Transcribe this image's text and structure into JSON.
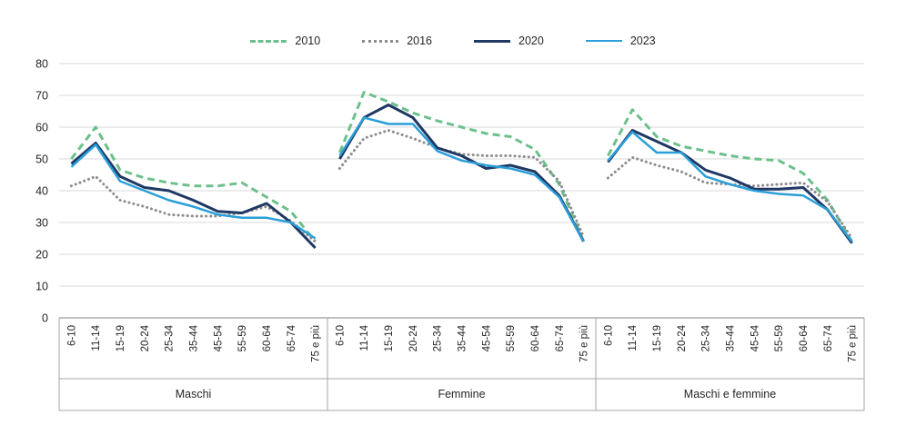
{
  "chart_data": {
    "type": "line",
    "title": "",
    "ylim": [
      0,
      80
    ],
    "yticks": [
      0,
      10,
      20,
      30,
      40,
      50,
      60,
      70,
      80
    ],
    "grid": true,
    "legend_position": "top",
    "categories": [
      "6-10",
      "11-14",
      "15-19",
      "20-24",
      "25-34",
      "35-44",
      "45-54",
      "55-59",
      "60-64",
      "65-74",
      "75 e più"
    ],
    "series": [
      {
        "name": "2010",
        "color": "#6cc08b",
        "style": "dashed",
        "width": 3
      },
      {
        "name": "2016",
        "color": "#8c8c8c",
        "style": "dotted",
        "width": 3
      },
      {
        "name": "2020",
        "color": "#1f3864",
        "style": "solid",
        "width": 3
      },
      {
        "name": "2023",
        "color": "#2b9fd9",
        "style": "solid",
        "width": 2.5
      }
    ],
    "panels": [
      {
        "label": "Maschi",
        "values": {
          "2010": [
            50,
            60,
            46.5,
            44,
            42.5,
            41.5,
            41.5,
            42.5,
            38,
            33.5,
            24
          ],
          "2016": [
            41.5,
            44.5,
            37,
            35,
            32.5,
            32,
            32,
            33,
            35,
            30.5,
            24
          ],
          "2020": [
            48.5,
            55,
            44.5,
            41,
            40,
            37,
            33.5,
            33,
            36,
            30,
            22
          ],
          "2023": [
            47.5,
            54.5,
            43,
            40,
            37,
            35,
            32.5,
            31.5,
            31.5,
            30,
            25
          ]
        }
      },
      {
        "label": "Femmine",
        "values": {
          "2010": [
            52,
            71,
            68,
            64.5,
            62,
            60,
            58,
            57,
            53,
            42,
            24
          ],
          "2016": [
            47,
            56.5,
            59,
            56.5,
            53.5,
            51.5,
            51,
            51,
            50.5,
            43,
            25.5
          ],
          "2020": [
            50,
            63,
            67,
            63,
            53.5,
            51,
            47,
            48,
            46,
            38.5,
            24
          ],
          "2023": [
            51,
            63,
            61,
            61,
            52.5,
            49.5,
            48,
            47,
            45,
            38,
            24
          ]
        }
      },
      {
        "label": "Maschi e femmine",
        "values": {
          "2010": [
            51,
            65.5,
            57,
            54,
            52.5,
            51,
            50,
            49.5,
            45.5,
            37,
            24
          ],
          "2016": [
            44,
            50.5,
            48,
            46,
            42.5,
            42,
            41.5,
            42,
            42.5,
            36.5,
            25
          ],
          "2020": [
            49,
            59,
            55.5,
            52,
            46.5,
            44,
            40.5,
            40.5,
            41,
            34,
            23.5
          ],
          "2023": [
            49.5,
            58.5,
            52,
            52,
            44.5,
            42,
            40,
            39,
            38.5,
            34,
            24
          ]
        }
      }
    ],
    "colors": {
      "gridline": "#d9d9d9",
      "axis": "#808080",
      "separator": "#a6a6a6",
      "text": "#262626"
    }
  }
}
